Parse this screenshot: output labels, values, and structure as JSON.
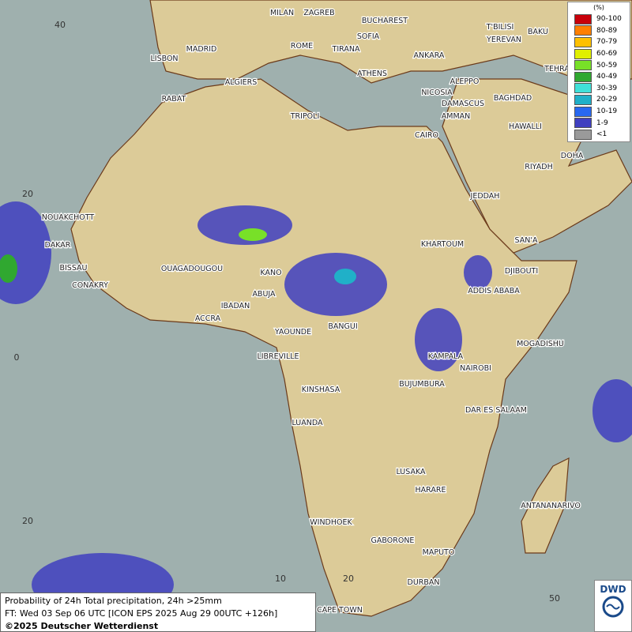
{
  "legend": {
    "title": "(%)",
    "items": [
      {
        "label": "90-100",
        "color": "#c8000a"
      },
      {
        "label": "80-89",
        "color": "#ff7f00"
      },
      {
        "label": "70-79",
        "color": "#ffc000"
      },
      {
        "label": "60-69",
        "color": "#e0f000"
      },
      {
        "label": "50-59",
        "color": "#78e028"
      },
      {
        "label": "40-49",
        "color": "#30a830"
      },
      {
        "label": "30-39",
        "color": "#40e0d8"
      },
      {
        "label": "20-29",
        "color": "#20b0c8"
      },
      {
        "label": "10-19",
        "color": "#2868f0"
      },
      {
        "label": "1-9",
        "color": "#4040c0"
      },
      {
        "label": "<1",
        "color": "#9a9a9a"
      }
    ]
  },
  "cities": [
    "MILAN",
    "ZAGREB",
    "BUCHAREST",
    "T'BILISI",
    "BAKU",
    "YEREVAN",
    "SOFIA",
    "ROME",
    "TIRANA",
    "MADRID",
    "ANKARA",
    "LISBON",
    "TEHRA",
    "ALGIERS",
    "ATHENS",
    "ALEPPO",
    "RABAT",
    "NICOSIA",
    "BAGHDAD",
    "TRIPOLI",
    "DAMASCUS",
    "AMMAN",
    "HAWALLI",
    "CAIRO",
    "DOHA",
    "RIYADH",
    "JEDDAH",
    "NOUAKCHOTT",
    "DAKAR",
    "SAN'A",
    "KHARTOUM",
    "BISSAU",
    "OUAGADOUGOU",
    "DJIBOUTI",
    "KANO",
    "CONAKRY",
    "ABUJA",
    "ADDIS ABABA",
    "IBADAN",
    "ACCRA",
    "BANGUI",
    "YAOUNDE",
    "MOGADISHU",
    "LIBREVILLE",
    "KAMPALA",
    "NAIROBI",
    "KINSHASA",
    "BUJUMBURA",
    "DAR ES SALAAM",
    "LUANDA",
    "LUSAKA",
    "HARARE",
    "ANTANANARIVO",
    "WINDHOEK",
    "GABORONE",
    "MAPUTO",
    "DURBAN",
    "CAPE TOWN"
  ],
  "grid_labels": [
    "40",
    "20",
    "0",
    "20",
    "10",
    "20",
    "50"
  ],
  "footer": {
    "lines": [
      "Probability of 24h Total precipitation, 24h >25mm",
      "FT: Wed 03 Sep 06 UTC [ICON EPS 2025 Aug 29 00UTC +126h]",
      "©2025 Deutscher Wetterdienst"
    ]
  },
  "logo": "DWD"
}
